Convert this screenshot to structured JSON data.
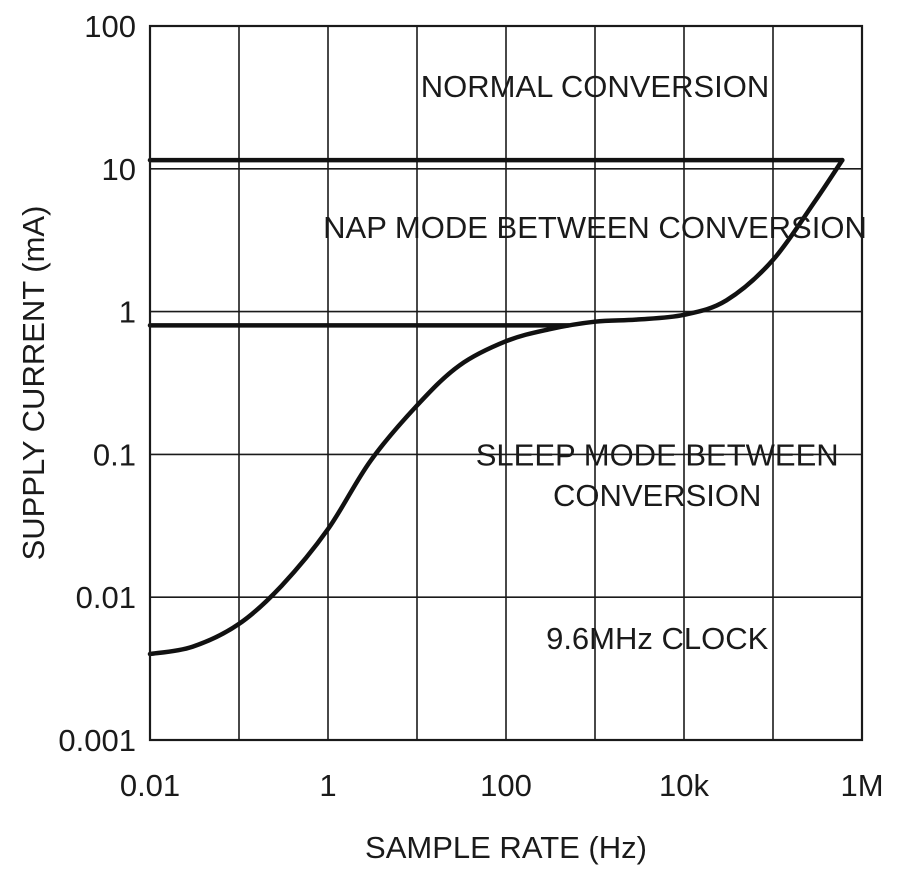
{
  "chart_data": {
    "type": "line",
    "xscale": "log",
    "yscale": "log",
    "xlabel": "SAMPLE RATE (Hz)",
    "ylabel": "SUPPLY CURRENT (mA)",
    "xlim": [
      0.01,
      1000000
    ],
    "ylim": [
      0.001,
      100
    ],
    "grid": true,
    "x_ticks": [
      {
        "value": 0.01,
        "label": "0.01"
      },
      {
        "value": 1,
        "label": "1"
      },
      {
        "value": 100,
        "label": "100"
      },
      {
        "value": 10000,
        "label": "10k"
      },
      {
        "value": 1000000,
        "label": "1M"
      }
    ],
    "y_ticks": [
      {
        "value": 0.001,
        "label": "0.001"
      },
      {
        "value": 0.01,
        "label": "0.01"
      },
      {
        "value": 0.1,
        "label": "0.1"
      },
      {
        "value": 1,
        "label": "1"
      },
      {
        "value": 10,
        "label": "10"
      },
      {
        "value": 100,
        "label": "100"
      }
    ],
    "series": [
      {
        "x": [
          0.01,
          1000,
          600000
        ],
        "y": [
          11.5,
          11.5,
          11.5
        ]
      },
      {
        "x": [
          0.01,
          500
        ],
        "y": [
          0.8,
          0.8
        ]
      },
      {
        "x": [
          0.01,
          0.03,
          0.1,
          0.3,
          1,
          3,
          10,
          30,
          100,
          300,
          1000,
          3000,
          10000,
          30000,
          100000,
          300000,
          600000
        ],
        "y": [
          0.004,
          0.0045,
          0.0065,
          0.012,
          0.03,
          0.09,
          0.22,
          0.42,
          0.62,
          0.75,
          0.85,
          0.88,
          0.95,
          1.2,
          2.3,
          6.0,
          11.5
        ]
      }
    ],
    "annotations": [
      {
        "text": "NORMAL CONVERSION",
        "x": 1000,
        "y": 38
      },
      {
        "text": "NAP MODE BETWEEN CONVERSION",
        "x": 1000,
        "y": 3.9
      },
      {
        "text": "SLEEP MODE BETWEEN",
        "x": 5000,
        "y": 0.1
      },
      {
        "text": "CONVERSION",
        "x": 5000,
        "y": 0.052
      },
      {
        "text": "9.6MHz CLOCK",
        "x": 5000,
        "y": 0.0052
      }
    ]
  }
}
